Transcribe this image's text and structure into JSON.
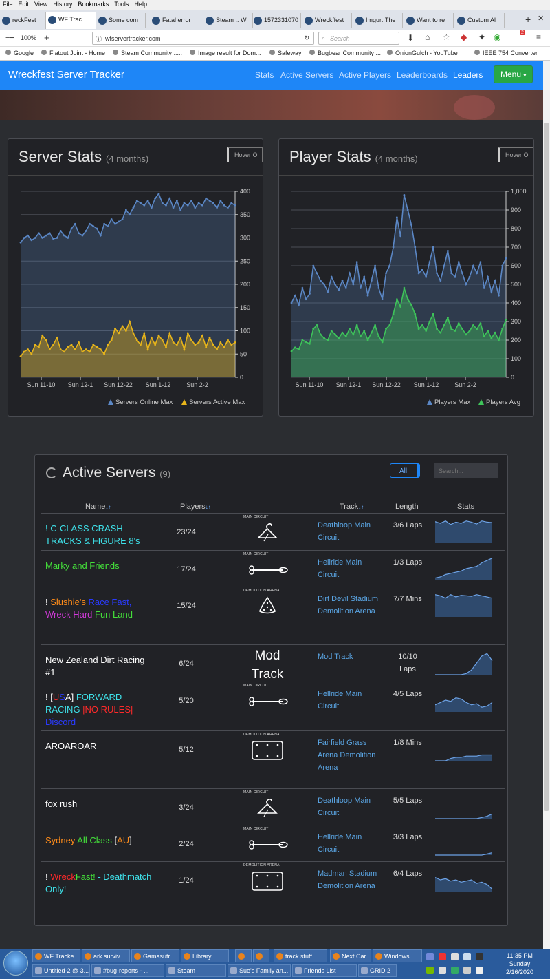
{
  "browser": {
    "menu": [
      "File",
      "Edit",
      "View",
      "History",
      "Bookmarks",
      "Tools",
      "Help"
    ],
    "tabs": [
      "reckFest",
      "WF Trac",
      "Some com",
      "Fatal error",
      "Steam :: W",
      "1572331070",
      "Wreckffest",
      "Imgur: The",
      "Want to re",
      "Custom Al"
    ],
    "zoom": "100%",
    "url": "wfservertracker.com",
    "search_placeholder": "Search",
    "bookmarks": [
      "Google",
      "Flatout Joint - Home",
      "Steam Community ::...",
      "Image result for Dom...",
      "Safeway",
      "Bugbear Community ...",
      "OnionGulch - YouTube",
      "IEEE 754 Converter"
    ],
    "badge": "2"
  },
  "site": {
    "brand": "Wreckfest Server Tracker",
    "nav": [
      "Stats",
      "Active Servers",
      "Active Players",
      "Leaderboards",
      "Leaders"
    ],
    "menu": "Menu"
  },
  "server_stats": {
    "title": "Server Stats",
    "subtitle": "(4 months)",
    "hover": "Hover O",
    "legend": [
      "Servers Online Max",
      "Servers Active Max"
    ]
  },
  "player_stats": {
    "title": "Player Stats",
    "subtitle": "(4 months)",
    "hover": "Hover O",
    "legend": [
      "Players Max",
      "Players Avg"
    ]
  },
  "chart_data": [
    {
      "type": "area",
      "y_ticks": [
        "0",
        "50",
        "100",
        "150",
        "200",
        "250",
        "300",
        "350",
        "400"
      ],
      "ylim": [
        0,
        400
      ],
      "x_ticks": [
        "Sun 11-10",
        "Sun 12-1",
        "Sun 12-22",
        "Sun 1-12",
        "Sun 2-2"
      ],
      "series": [
        {
          "name": "Servers Online Max",
          "color": "#5b87c5",
          "values": [
            290,
            300,
            305,
            295,
            300,
            310,
            300,
            305,
            310,
            298,
            300,
            315,
            305,
            300,
            320,
            330,
            310,
            305,
            315,
            330,
            325,
            320,
            305,
            330,
            325,
            340,
            330,
            335,
            340,
            360,
            350,
            365,
            380,
            375,
            370,
            380,
            365,
            385,
            395,
            375,
            370,
            385,
            365,
            380,
            360,
            375,
            370,
            380,
            365,
            375,
            370,
            385,
            380,
            375,
            365,
            380,
            370,
            365,
            375,
            370
          ]
        },
        {
          "name": "Servers Active Max",
          "color": "#e8b51a",
          "values": [
            45,
            55,
            60,
            50,
            70,
            65,
            90,
            80,
            60,
            70,
            85,
            60,
            55,
            65,
            70,
            60,
            75,
            55,
            60,
            55,
            70,
            65,
            60,
            50,
            70,
            80,
            105,
            95,
            110,
            100,
            120,
            95,
            80,
            70,
            95,
            60,
            85,
            70,
            90,
            80,
            65,
            95,
            75,
            70,
            85,
            60,
            95,
            80,
            70,
            75,
            90,
            65,
            85,
            70,
            60,
            75,
            65,
            80,
            70,
            75
          ]
        }
      ]
    },
    {
      "type": "area",
      "y_ticks": [
        "0",
        "100",
        "200",
        "300",
        "400",
        "500",
        "600",
        "700",
        "800",
        "900",
        "1,000"
      ],
      "ylim": [
        0,
        1000
      ],
      "x_ticks": [
        "Sun 11-10",
        "Sun 12-1",
        "Sun 12-22",
        "Sun 1-12",
        "Sun 2-2"
      ],
      "series": [
        {
          "name": "Players Max",
          "color": "#5b87c5",
          "values": [
            400,
            440,
            390,
            480,
            420,
            450,
            600,
            560,
            520,
            500,
            460,
            540,
            500,
            470,
            520,
            480,
            560,
            500,
            620,
            480,
            540,
            440,
            520,
            600,
            480,
            420,
            560,
            600,
            700,
            860,
            760,
            980,
            900,
            820,
            700,
            560,
            580,
            540,
            620,
            700,
            560,
            520,
            600,
            680,
            560,
            540,
            620,
            560,
            500,
            540,
            600,
            560,
            620,
            480,
            540,
            460,
            520,
            440,
            600,
            640
          ]
        },
        {
          "name": "Players Avg",
          "color": "#3ec35a",
          "values": [
            140,
            160,
            150,
            200,
            190,
            180,
            260,
            280,
            230,
            210,
            200,
            250,
            230,
            210,
            240,
            220,
            260,
            230,
            280,
            220,
            250,
            200,
            240,
            280,
            220,
            190,
            260,
            280,
            340,
            420,
            380,
            480,
            420,
            390,
            340,
            260,
            280,
            250,
            300,
            340,
            260,
            240,
            280,
            320,
            260,
            250,
            290,
            260,
            230,
            250,
            280,
            260,
            290,
            220,
            250,
            210,
            240,
            200,
            260,
            310
          ]
        }
      ]
    }
  ],
  "active_servers": {
    "title": "Active Servers",
    "count": "(9)",
    "filter": "All",
    "search_placeholder": "Search...",
    "columns": {
      "name": "Name",
      "players": "Players",
      "track": "Track",
      "length": "Length",
      "stats": "Stats"
    },
    "rows": [
      {
        "name_parts": [
          {
            "t": "! C-CLASS CRASH TRACKS & FIGURE 8's",
            "c": "#3ee0e8"
          }
        ],
        "players": "23/24",
        "tcat": "MAIN CIRCUIT",
        "ticon": "hanger",
        "track": "Deathloop Main Circuit",
        "length": "3/6 Laps",
        "spark": [
          0.92,
          0.85,
          0.95,
          0.8,
          0.9,
          0.85,
          0.95,
          0.9,
          0.82,
          0.95,
          0.9,
          0.88
        ]
      },
      {
        "name_parts": [
          {
            "t": "Marky and Friends",
            "c": "#44e23a"
          }
        ],
        "players": "17/24",
        "tcat": "MAIN CIRCUIT",
        "ticon": "bone",
        "track": "Hellride Main Circuit",
        "length": "1/3 Laps",
        "spark": [
          0.1,
          0.15,
          0.25,
          0.3,
          0.35,
          0.4,
          0.5,
          0.55,
          0.6,
          0.75,
          0.85,
          0.95
        ]
      },
      {
        "name_parts": [
          {
            "t": "! ",
            "c": "#fff"
          },
          {
            "t": "Slushie's ",
            "c": "#ff8c1a"
          },
          {
            "t": "Race Fast, ",
            "c": "#2a3bff"
          },
          {
            "t": "Wreck Hard ",
            "c": "#d03ad8"
          },
          {
            "t": "Fun Land",
            "c": "#44e23a"
          }
        ],
        "players": "15/24",
        "tcat": "DEMOLITION ARENA",
        "ticon": "triangle",
        "track": "Dirt Devil Stadium Demolition Arena",
        "length": "7/7 Mins",
        "spark": [
          0.95,
          0.9,
          0.8,
          0.95,
          0.85,
          0.92,
          0.9,
          0.88,
          0.95,
          0.9,
          0.85,
          0.8
        ]
      },
      {
        "name_parts": [
          {
            "t": "New Zealand Dirt Racing #1",
            "c": "#fff"
          }
        ],
        "players": "6/24",
        "tcat": "",
        "ticon": "mod",
        "mod_text": "Mod Track",
        "track": "Mod Track",
        "length": "10/10 Laps",
        "spark": [
          0,
          0,
          0,
          0,
          0,
          0,
          0.05,
          0.2,
          0.5,
          0.8,
          0.9,
          0.6
        ]
      },
      {
        "name_parts": [
          {
            "t": "! [",
            "c": "#fff"
          },
          {
            "t": "U",
            "c": "#ff2a2a"
          },
          {
            "t": "S",
            "c": "#2a3bff"
          },
          {
            "t": "A] ",
            "c": "#fff"
          },
          {
            "t": "FORWARD RACING ",
            "c": "#3ee0e8"
          },
          {
            "t": "|NO RULES| ",
            "c": "#ff2a2a"
          },
          {
            "t": "Discord",
            "c": "#2a3bff"
          }
        ],
        "players": "5/20",
        "tcat": "MAIN CIRCUIT",
        "ticon": "bone",
        "track": "Hellride Main Circuit",
        "length": "4/5 Laps",
        "spark": [
          0.3,
          0.4,
          0.5,
          0.45,
          0.6,
          0.55,
          0.4,
          0.3,
          0.35,
          0.2,
          0.25,
          0.4
        ]
      },
      {
        "name_parts": [
          {
            "t": "AROAROAR",
            "c": "#fff"
          }
        ],
        "players": "5/12",
        "tcat": "DEMOLITION ARENA",
        "ticon": "rect",
        "track": "Fairfield Grass Arena Demolition Arena",
        "length": "1/8 Mins",
        "spark": [
          0,
          0,
          0,
          0.1,
          0.15,
          0.15,
          0.2,
          0.2,
          0.2,
          0.25,
          0.25,
          0.25
        ]
      },
      {
        "name_parts": [
          {
            "t": "fox rush",
            "c": "#fff"
          }
        ],
        "players": "3/24",
        "tcat": "MAIN CIRCUIT",
        "ticon": "hanger",
        "track": "Deathloop Main Circuit",
        "length": "5/5 Laps",
        "spark": [
          0,
          0,
          0,
          0,
          0,
          0,
          0,
          0,
          0,
          0.05,
          0.1,
          0.2
        ]
      },
      {
        "name_parts": [
          {
            "t": "Sydney ",
            "c": "#ff8c1a"
          },
          {
            "t": "All Class ",
            "c": "#44e23a"
          },
          {
            "t": "[",
            "c": "#fff"
          },
          {
            "t": "AU",
            "c": "#ff8c1a"
          },
          {
            "t": "]",
            "c": "#fff"
          }
        ],
        "players": "2/24",
        "tcat": "MAIN CIRCUIT",
        "ticon": "bone",
        "track": "Hellride Main Circuit",
        "length": "3/3 Laps",
        "spark": [
          0,
          0,
          0,
          0,
          0,
          0,
          0,
          0,
          0,
          0,
          0.05,
          0.1
        ]
      },
      {
        "name_parts": [
          {
            "t": "! ",
            "c": "#fff"
          },
          {
            "t": "Wreck",
            "c": "#ff2a2a"
          },
          {
            "t": "Fast! ",
            "c": "#44e23a"
          },
          {
            "t": "- Deathmatch Only!",
            "c": "#3ee0e8"
          }
        ],
        "players": "1/24",
        "tcat": "DEMOLITION ARENA",
        "ticon": "rect",
        "track": "Madman Stadium Demolition Arena",
        "length": "6/4 Laps",
        "spark": [
          0.6,
          0.5,
          0.55,
          0.45,
          0.5,
          0.4,
          0.45,
          0.5,
          0.35,
          0.4,
          0.3,
          0.1
        ]
      }
    ]
  },
  "taskbar": {
    "row1": [
      "WF Tracke...",
      "ark surviv...",
      "Gamasutr...",
      "Library",
      "",
      "",
      "track stuff",
      "Next Car ...",
      "Windows ..."
    ],
    "row2": [
      "Untitled-2 @ 3...",
      "#bug-reports - ...",
      "Steam",
      "Sue's Family an...",
      "Friends List",
      "GRID 2"
    ],
    "time": "11:35 PM",
    "day": "Sunday",
    "date": "2/16/2020"
  }
}
